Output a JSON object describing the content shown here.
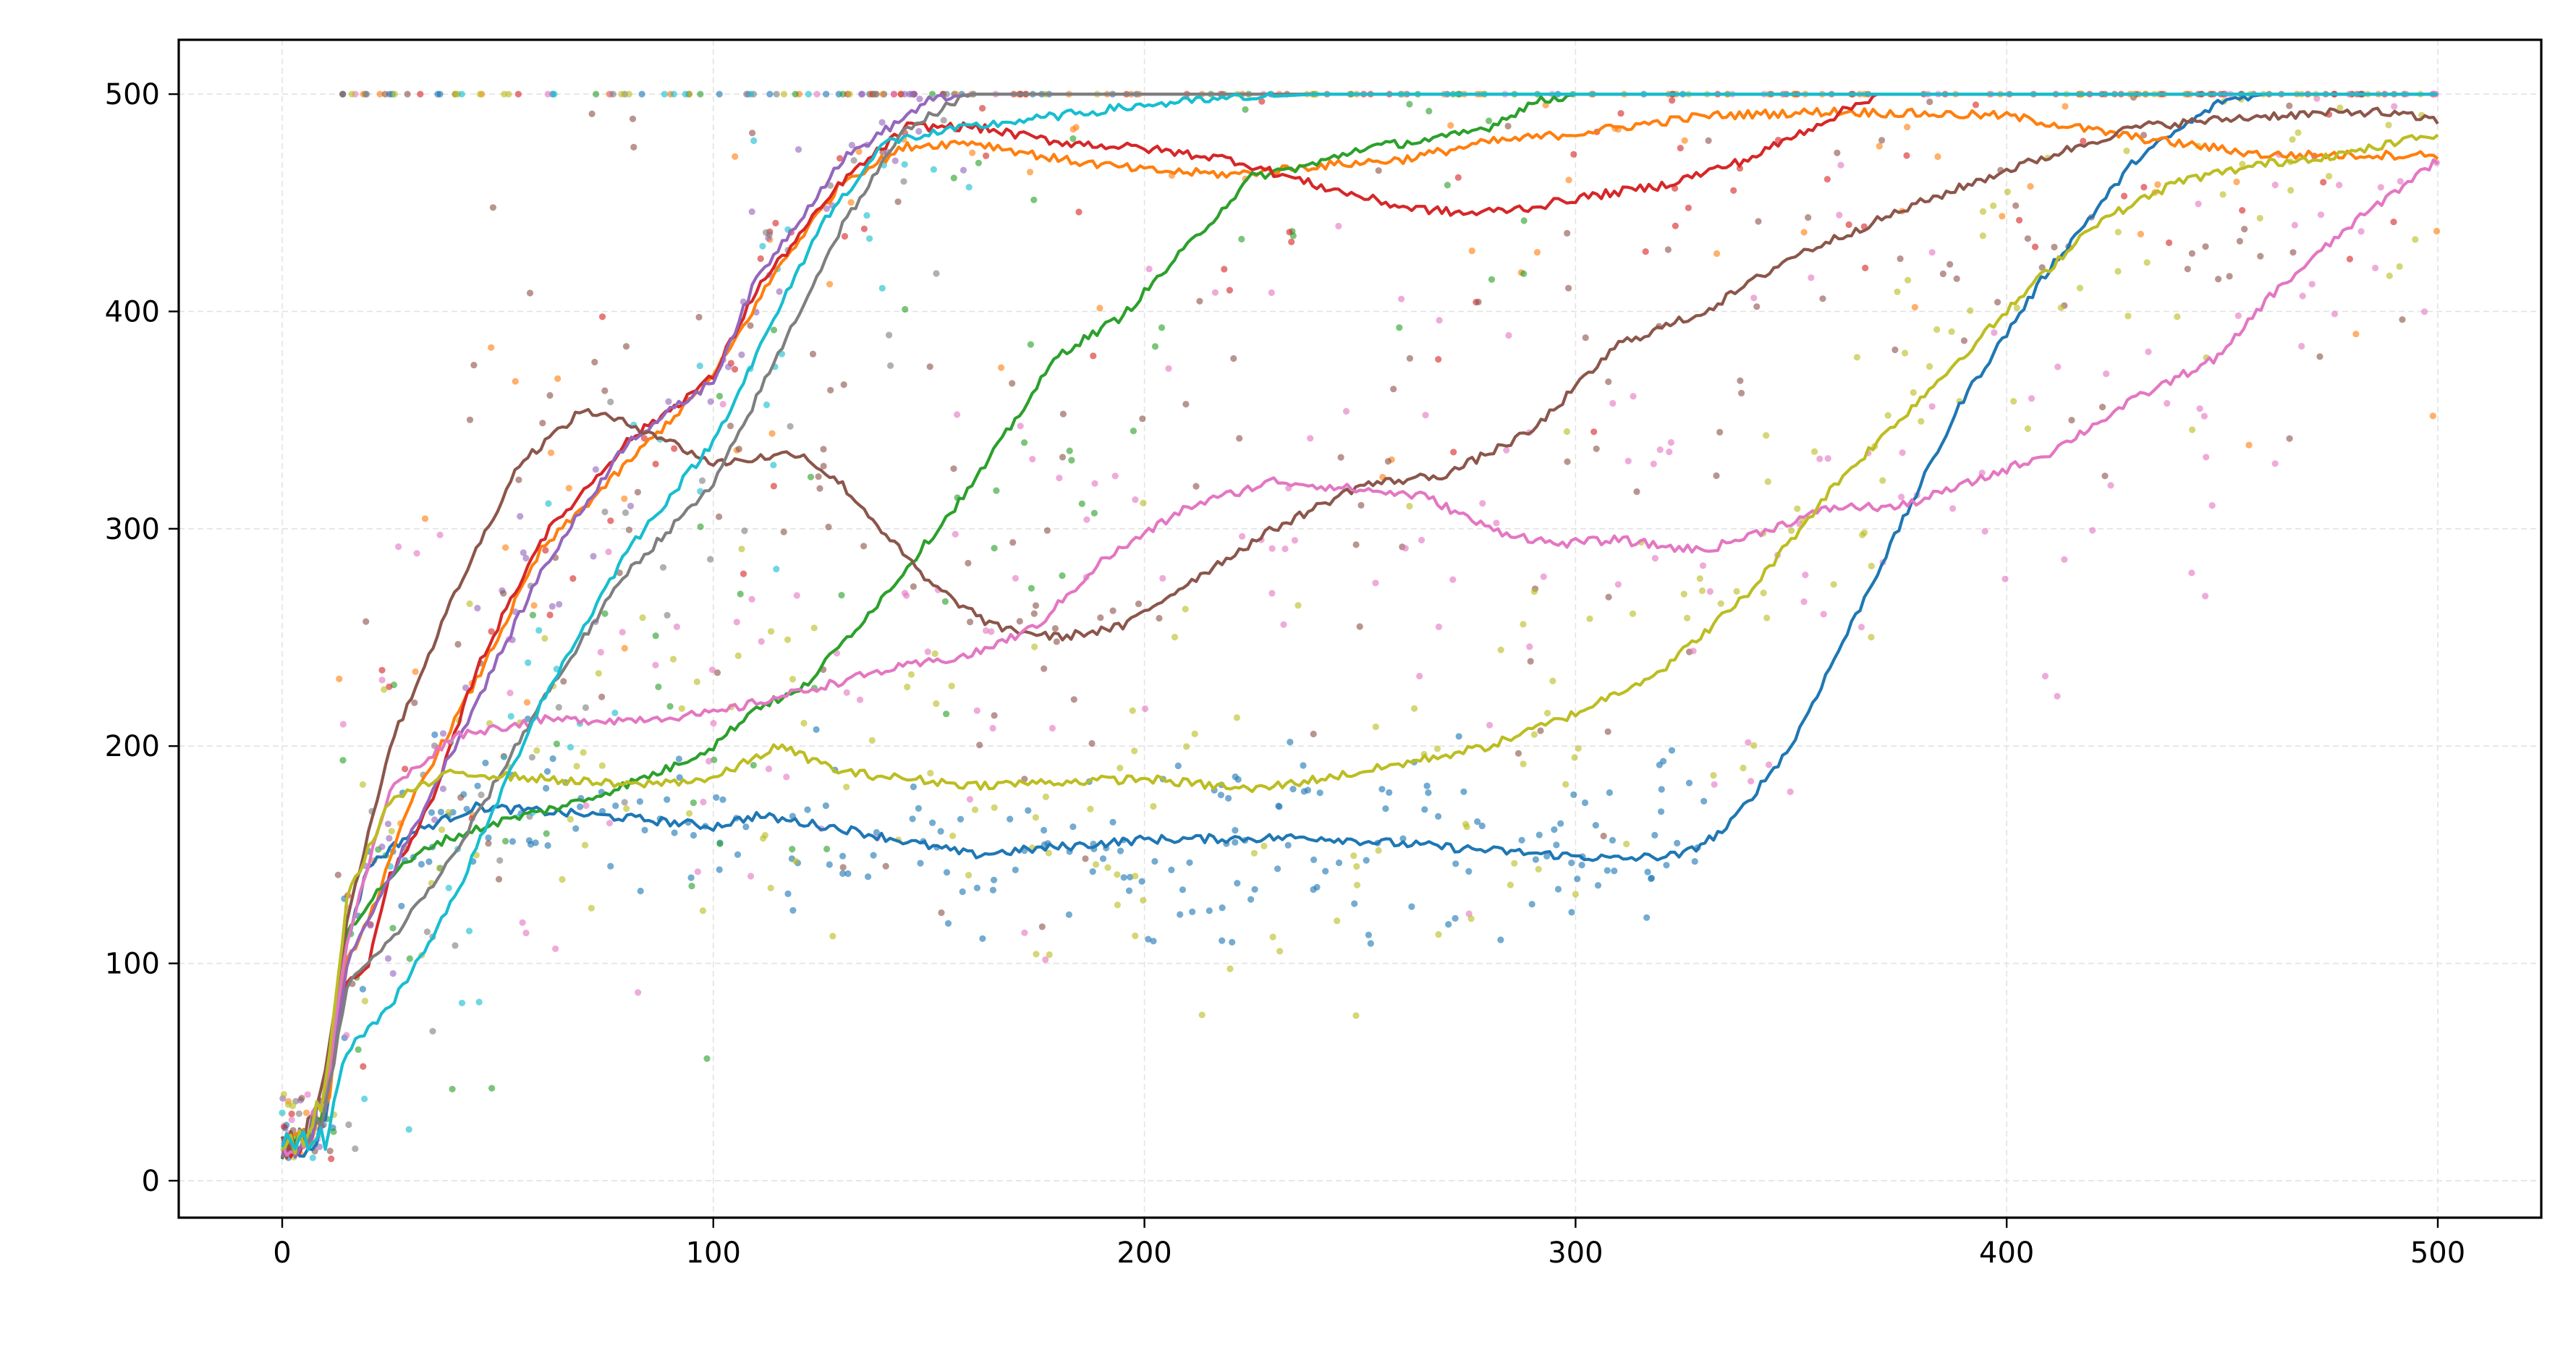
{
  "chart_data": {
    "type": "scatter+line",
    "title": "",
    "xlabel": "",
    "ylabel": "",
    "xlim": [
      -24,
      524
    ],
    "ylim": [
      -17,
      525
    ],
    "xticks": [
      0,
      100,
      200,
      300,
      400,
      500
    ],
    "yticks": [
      0,
      100,
      200,
      300,
      400,
      500
    ],
    "grid": true,
    "legend": "none",
    "series": [
      {
        "color": "#1f77b4",
        "line": [
          [
            0,
            15
          ],
          [
            5,
            16
          ],
          [
            10,
            25
          ],
          [
            15,
            110
          ],
          [
            20,
            145
          ],
          [
            30,
            160
          ],
          [
            45,
            172
          ],
          [
            60,
            170
          ],
          [
            80,
            167
          ],
          [
            100,
            163
          ],
          [
            110,
            168
          ],
          [
            130,
            162
          ],
          [
            160,
            150
          ],
          [
            200,
            157
          ],
          [
            240,
            158
          ],
          [
            280,
            152
          ],
          [
            310,
            148
          ],
          [
            325,
            150
          ],
          [
            335,
            162
          ],
          [
            350,
            200
          ],
          [
            370,
            280
          ],
          [
            390,
            360
          ],
          [
            410,
            420
          ],
          [
            430,
            470
          ],
          [
            450,
            497
          ],
          [
            460,
            500
          ],
          [
            500,
            500
          ]
        ],
        "scatter": {
          "center": 155,
          "spread": 35,
          "count": 260,
          "xmax": 330
        }
      },
      {
        "color": "#ff7f0e",
        "line": [
          [
            0,
            15
          ],
          [
            5,
            18
          ],
          [
            10,
            30
          ],
          [
            15,
            100
          ],
          [
            22,
            130
          ],
          [
            30,
            175
          ],
          [
            45,
            230
          ],
          [
            60,
            290
          ],
          [
            80,
            330
          ],
          [
            100,
            370
          ],
          [
            115,
            420
          ],
          [
            130,
            460
          ],
          [
            145,
            476
          ],
          [
            160,
            478
          ],
          [
            180,
            470
          ],
          [
            200,
            465
          ],
          [
            220,
            463
          ],
          [
            240,
            467
          ],
          [
            260,
            470
          ],
          [
            280,
            478
          ],
          [
            300,
            482
          ],
          [
            330,
            490
          ],
          [
            360,
            492
          ],
          [
            400,
            490
          ],
          [
            430,
            480
          ],
          [
            460,
            472
          ],
          [
            500,
            472
          ]
        ],
        "scatter": {
          "center": 380,
          "spread": 110,
          "count": 120,
          "xmax": 500
        }
      },
      {
        "color": "#2ca02c",
        "line": [
          [
            0,
            15
          ],
          [
            5,
            18
          ],
          [
            10,
            35
          ],
          [
            15,
            115
          ],
          [
            25,
            140
          ],
          [
            35,
            155
          ],
          [
            50,
            165
          ],
          [
            70,
            175
          ],
          [
            90,
            190
          ],
          [
            100,
            200
          ],
          [
            110,
            218
          ],
          [
            120,
            225
          ],
          [
            140,
            270
          ],
          [
            160,
            320
          ],
          [
            180,
            380
          ],
          [
            195,
            398
          ],
          [
            210,
            430
          ],
          [
            225,
            462
          ],
          [
            240,
            468
          ],
          [
            250,
            475
          ],
          [
            270,
            480
          ],
          [
            280,
            485
          ],
          [
            290,
            496
          ],
          [
            300,
            500
          ],
          [
            500,
            500
          ]
        ],
        "scatter": {
          "center": 300,
          "spread": 130,
          "count": 90,
          "xmax": 300
        }
      },
      {
        "color": "#d62728",
        "line": [
          [
            0,
            15
          ],
          [
            5,
            18
          ],
          [
            10,
            40
          ],
          [
            15,
            90
          ],
          [
            20,
            100
          ],
          [
            25,
            140
          ],
          [
            35,
            175
          ],
          [
            45,
            235
          ],
          [
            60,
            295
          ],
          [
            80,
            340
          ],
          [
            100,
            370
          ],
          [
            110,
            410
          ],
          [
            130,
            460
          ],
          [
            145,
            485
          ],
          [
            160,
            485
          ],
          [
            180,
            478
          ],
          [
            200,
            475
          ],
          [
            220,
            470
          ],
          [
            240,
            458
          ],
          [
            260,
            448
          ],
          [
            275,
            445
          ],
          [
            290,
            448
          ],
          [
            300,
            452
          ],
          [
            320,
            458
          ],
          [
            340,
            470
          ],
          [
            360,
            490
          ],
          [
            370,
            500
          ],
          [
            500,
            500
          ]
        ],
        "scatter": {
          "center": 420,
          "spread": 90,
          "count": 120,
          "xmax": 500
        }
      },
      {
        "color": "#9467bd",
        "line": [
          [
            0,
            15
          ],
          [
            5,
            18
          ],
          [
            10,
            35
          ],
          [
            15,
            100
          ],
          [
            25,
            140
          ],
          [
            40,
            200
          ],
          [
            60,
            280
          ],
          [
            80,
            340
          ],
          [
            100,
            368
          ],
          [
            110,
            415
          ],
          [
            130,
            470
          ],
          [
            150,
            497
          ],
          [
            160,
            500
          ],
          [
            500,
            500
          ]
        ],
        "scatter": {
          "center": 480,
          "spread": 40,
          "count": 60,
          "xmax": 160
        }
      },
      {
        "color": "#8c564b",
        "line": [
          [
            0,
            15
          ],
          [
            5,
            20
          ],
          [
            10,
            50
          ],
          [
            15,
            120
          ],
          [
            25,
            200
          ],
          [
            40,
            270
          ],
          [
            55,
            330
          ],
          [
            70,
            355
          ],
          [
            85,
            345
          ],
          [
            100,
            330
          ],
          [
            120,
            335
          ],
          [
            130,
            320
          ],
          [
            150,
            275
          ],
          [
            165,
            255
          ],
          [
            180,
            250
          ],
          [
            195,
            255
          ],
          [
            210,
            275
          ],
          [
            230,
            300
          ],
          [
            250,
            320
          ],
          [
            270,
            325
          ],
          [
            290,
            345
          ],
          [
            310,
            385
          ],
          [
            330,
            400
          ],
          [
            350,
            425
          ],
          [
            380,
            450
          ],
          [
            400,
            465
          ],
          [
            430,
            485
          ],
          [
            460,
            490
          ],
          [
            485,
            492
          ],
          [
            500,
            488
          ]
        ],
        "scatter": {
          "center": 300,
          "spread": 120,
          "count": 200,
          "xmax": 500
        }
      },
      {
        "color": "#e377c2",
        "line": [
          [
            0,
            15
          ],
          [
            5,
            18
          ],
          [
            10,
            40
          ],
          [
            15,
            110
          ],
          [
            25,
            180
          ],
          [
            40,
            205
          ],
          [
            60,
            212
          ],
          [
            80,
            212
          ],
          [
            100,
            215
          ],
          [
            120,
            225
          ],
          [
            140,
            235
          ],
          [
            160,
            242
          ],
          [
            175,
            255
          ],
          [
            190,
            285
          ],
          [
            210,
            310
          ],
          [
            230,
            322
          ],
          [
            250,
            318
          ],
          [
            265,
            315
          ],
          [
            280,
            300
          ],
          [
            295,
            293
          ],
          [
            310,
            295
          ],
          [
            320,
            292
          ],
          [
            330,
            290
          ],
          [
            345,
            300
          ],
          [
            360,
            310
          ],
          [
            375,
            310
          ],
          [
            390,
            320
          ],
          [
            410,
            335
          ],
          [
            430,
            360
          ],
          [
            450,
            380
          ],
          [
            460,
            405
          ],
          [
            480,
            440
          ],
          [
            500,
            470
          ]
        ],
        "scatter": {
          "center": 300,
          "spread": 120,
          "count": 200,
          "xmax": 500
        }
      },
      {
        "color": "#7f7f7f",
        "line": [
          [
            0,
            15
          ],
          [
            5,
            20
          ],
          [
            10,
            30
          ],
          [
            15,
            90
          ],
          [
            25,
            110
          ],
          [
            40,
            150
          ],
          [
            60,
            220
          ],
          [
            80,
            280
          ],
          [
            100,
            320
          ],
          [
            115,
            380
          ],
          [
            130,
            440
          ],
          [
            145,
            485
          ],
          [
            160,
            500
          ],
          [
            500,
            500
          ]
        ],
        "scatter": {
          "center": 420,
          "spread": 90,
          "count": 50,
          "xmax": 160
        }
      },
      {
        "color": "#bcbd22",
        "line": [
          [
            0,
            15
          ],
          [
            5,
            18
          ],
          [
            10,
            40
          ],
          [
            15,
            130
          ],
          [
            25,
            175
          ],
          [
            40,
            188
          ],
          [
            60,
            185
          ],
          [
            80,
            182
          ],
          [
            100,
            185
          ],
          [
            115,
            200
          ],
          [
            130,
            188
          ],
          [
            160,
            182
          ],
          [
            200,
            185
          ],
          [
            225,
            180
          ],
          [
            250,
            188
          ],
          [
            280,
            200
          ],
          [
            300,
            215
          ],
          [
            320,
            235
          ],
          [
            340,
            270
          ],
          [
            360,
            320
          ],
          [
            380,
            360
          ],
          [
            400,
            400
          ],
          [
            420,
            440
          ],
          [
            440,
            460
          ],
          [
            460,
            468
          ],
          [
            480,
            473
          ],
          [
            500,
            482
          ]
        ],
        "scatter": {
          "center": 220,
          "spread": 80,
          "count": 240,
          "xmax": 500
        }
      },
      {
        "color": "#17becf",
        "line": [
          [
            0,
            15
          ],
          [
            5,
            18
          ],
          [
            10,
            20
          ],
          [
            15,
            60
          ],
          [
            25,
            80
          ],
          [
            40,
            130
          ],
          [
            60,
            220
          ],
          [
            80,
            290
          ],
          [
            100,
            340
          ],
          [
            110,
            380
          ],
          [
            125,
            440
          ],
          [
            140,
            478
          ],
          [
            160,
            485
          ],
          [
            180,
            490
          ],
          [
            200,
            495
          ],
          [
            220,
            498
          ],
          [
            240,
            500
          ],
          [
            500,
            500
          ]
        ],
        "scatter": {
          "center": 440,
          "spread": 80,
          "count": 50,
          "xmax": 160
        }
      }
    ]
  }
}
